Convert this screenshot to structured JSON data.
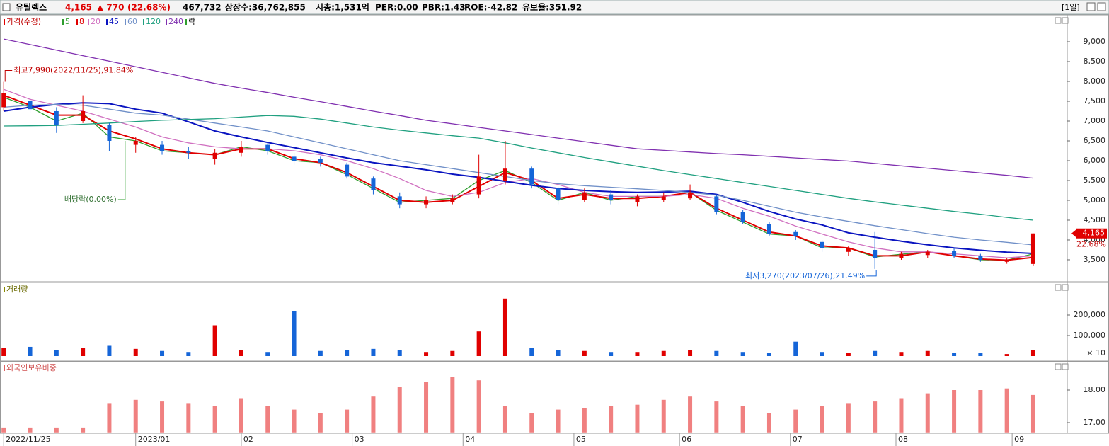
{
  "header": {
    "name": "유틸렉스",
    "price": "4,165",
    "change": "▲ 770",
    "change_pct": "(22.68%)",
    "volume": "467,732",
    "shares": "상장수:36,762,855",
    "market_cap": "시총:1,531억",
    "per": "PER:0.00",
    "pbr": "PBR:1.43",
    "roe": "ROE:-42.82",
    "reserve": "유보율:351.92",
    "period": "[1일]"
  },
  "chart_data": [
    {
      "type": "candlestick",
      "name": "가격(수정)",
      "up_color": "#e00000",
      "down_color": "#1565d8",
      "x": [
        0,
        5,
        10,
        15,
        20,
        25,
        30,
        35,
        40,
        45,
        50,
        55,
        60,
        65,
        70,
        75,
        80,
        85,
        90,
        95,
        100,
        105,
        110,
        115,
        120,
        125,
        130,
        135,
        140,
        145,
        150,
        155,
        160,
        165,
        170,
        175,
        180,
        185,
        190,
        195
      ],
      "open": [
        7350,
        7500,
        7250,
        7000,
        6900,
        6400,
        6400,
        6250,
        6050,
        6200,
        6400,
        6100,
        6050,
        5900,
        5550,
        5100,
        4900,
        4950,
        5150,
        5500,
        5800,
        5300,
        5000,
        5150,
        4950,
        5000,
        5050,
        5100,
        4700,
        4400,
        4200,
        3950,
        3700,
        3750,
        3550,
        3620,
        3720,
        3600,
        3450,
        3395
      ],
      "high": [
        7990,
        7600,
        7350,
        7650,
        6950,
        6600,
        6500,
        6350,
        6300,
        6500,
        6450,
        6200,
        6100,
        5950,
        5600,
        5200,
        5100,
        5150,
        6150,
        6500,
        5850,
        5350,
        5300,
        5250,
        5150,
        5200,
        5400,
        5150,
        4750,
        4450,
        4250,
        4000,
        3850,
        4200,
        3700,
        3750,
        3800,
        3650,
        3550,
        4165
      ],
      "low": [
        7250,
        7200,
        6700,
        6950,
        6250,
        6200,
        6150,
        6050,
        5900,
        6100,
        6150,
        5900,
        5850,
        5550,
        5150,
        4800,
        4800,
        4900,
        5050,
        5400,
        5300,
        4900,
        4950,
        4900,
        4850,
        4950,
        5000,
        4650,
        4400,
        4100,
        4000,
        3700,
        3600,
        3270,
        3500,
        3550,
        3550,
        3450,
        3400,
        3340
      ],
      "close": [
        7700,
        7300,
        6900,
        7250,
        6500,
        6500,
        6250,
        6200,
        6200,
        6350,
        6250,
        6000,
        5950,
        5600,
        5250,
        4900,
        5000,
        5050,
        5600,
        5800,
        5400,
        5000,
        5200,
        5000,
        5100,
        5100,
        5200,
        4700,
        4450,
        4150,
        4100,
        3800,
        3800,
        3550,
        3650,
        3700,
        3600,
        3500,
        3500,
        4165
      ],
      "series": [
        {
          "name": "5",
          "color": "#2e9e2e",
          "values": [
            7600,
            7350,
            7000,
            7200,
            6600,
            6500,
            6250,
            6200,
            6150,
            6350,
            6250,
            6000,
            5950,
            5650,
            5300,
            4950,
            5000,
            5050,
            5500,
            5750,
            5450,
            5000,
            5200,
            5000,
            5100,
            5100,
            5200,
            4750,
            4450,
            4150,
            4100,
            3800,
            3800,
            3570,
            3640,
            3700,
            3600,
            3500,
            3490,
            3650
          ]
        },
        {
          "name": "8",
          "color": "#e00000",
          "values": [
            7650,
            7400,
            7150,
            7150,
            6750,
            6550,
            6300,
            6200,
            6150,
            6300,
            6300,
            6050,
            5950,
            5700,
            5350,
            5000,
            4950,
            5000,
            5350,
            5700,
            5500,
            5050,
            5150,
            5050,
            5050,
            5100,
            5200,
            4800,
            4500,
            4200,
            4100,
            3850,
            3800,
            3600,
            3600,
            3700,
            3600,
            3520,
            3490,
            3560
          ]
        },
        {
          "name": "20",
          "color": "#d070c0",
          "values": [
            7800,
            7550,
            7400,
            7250,
            7050,
            6850,
            6600,
            6450,
            6350,
            6300,
            6300,
            6250,
            6150,
            6000,
            5800,
            5550,
            5250,
            5100,
            5200,
            5450,
            5550,
            5400,
            5200,
            5100,
            5100,
            5100,
            5150,
            5050,
            4800,
            4600,
            4350,
            4150,
            3950,
            3800,
            3700,
            3700,
            3650,
            3600,
            3550,
            3600
          ]
        },
        {
          "name": "45",
          "color": "#0a14c0",
          "values": [
            7250,
            7350,
            7420,
            7460,
            7440,
            7300,
            7200,
            6980,
            6750,
            6600,
            6460,
            6330,
            6200,
            6070,
            5950,
            5860,
            5770,
            5660,
            5580,
            5480,
            5380,
            5300,
            5250,
            5220,
            5200,
            5210,
            5230,
            5150,
            4950,
            4720,
            4530,
            4380,
            4180,
            4070,
            3970,
            3880,
            3800,
            3740,
            3690,
            3660
          ]
        },
        {
          "name": "60",
          "color": "#7090c8",
          "values": [
            7350,
            7400,
            7420,
            7400,
            7300,
            7200,
            7150,
            7050,
            6950,
            6850,
            6750,
            6600,
            6450,
            6300,
            6150,
            6000,
            5900,
            5800,
            5700,
            5600,
            5500,
            5420,
            5370,
            5330,
            5290,
            5250,
            5200,
            5130,
            5000,
            4850,
            4700,
            4580,
            4470,
            4360,
            4260,
            4160,
            4070,
            4000,
            3940,
            3875
          ]
        },
        {
          "name": "120",
          "color": "#20a080",
          "values": [
            6875,
            6880,
            6890,
            6920,
            6950,
            6990,
            7020,
            7040,
            7060,
            7100,
            7140,
            7120,
            7050,
            6950,
            6850,
            6770,
            6700,
            6630,
            6570,
            6450,
            6320,
            6200,
            6080,
            5970,
            5860,
            5750,
            5650,
            5550,
            5450,
            5350,
            5250,
            5150,
            5050,
            4960,
            4880,
            4800,
            4720,
            4650,
            4570,
            4500
          ]
        },
        {
          "name": "240",
          "color": "#8030b0",
          "values": [
            9070,
            8930,
            8790,
            8650,
            8510,
            8370,
            8230,
            8090,
            7950,
            7830,
            7720,
            7600,
            7490,
            7370,
            7250,
            7140,
            7020,
            6930,
            6840,
            6750,
            6660,
            6570,
            6480,
            6390,
            6300,
            6260,
            6220,
            6180,
            6150,
            6110,
            6070,
            6030,
            5990,
            5930,
            5870,
            5810,
            5750,
            5690,
            5630,
            5560
          ]
        }
      ],
      "dividend_legend": "락",
      "xlim": [
        -0.7,
        200.5
      ],
      "ylim": [
        2980,
        9430
      ],
      "yticks": [
        {
          "value": 3500,
          "label": "3,500"
        },
        {
          "value": 4000,
          "label": "4,000"
        },
        {
          "value": 4500,
          "label": "4,500"
        },
        {
          "value": 5000,
          "label": "5,000"
        },
        {
          "value": 5500,
          "label": "5,500"
        },
        {
          "value": 6000,
          "label": "6,000"
        },
        {
          "value": 6500,
          "label": "6,500"
        },
        {
          "value": 7000,
          "label": "7,000"
        },
        {
          "value": 7500,
          "label": "7,500"
        },
        {
          "value": 8000,
          "label": "8,000"
        },
        {
          "value": 8500,
          "label": "8,500"
        },
        {
          "value": 9000,
          "label": "9,000"
        }
      ],
      "last_price_label": "4,165",
      "last_change_label": "22.68%",
      "annotations": [
        {
          "text": "최고7,990(2022/11/25),91.84%",
          "x": 0,
          "y": 7990
        },
        {
          "text": "최저3,270(2023/07/26),21.49%",
          "x": 165,
          "y": 3270
        },
        {
          "text": "배당락(0.00%)",
          "x": 23,
          "y": 6500
        }
      ]
    },
    {
      "type": "bar",
      "title": "거래량",
      "up_color": "#e00000",
      "down_color": "#1565d8",
      "x": [
        0,
        5,
        10,
        15,
        20,
        25,
        30,
        35,
        40,
        45,
        50,
        55,
        60,
        65,
        70,
        75,
        80,
        85,
        90,
        95,
        100,
        105,
        110,
        115,
        120,
        125,
        130,
        135,
        140,
        145,
        150,
        155,
        160,
        165,
        170,
        175,
        180,
        185,
        190,
        195
      ],
      "values": [
        40000,
        45000,
        30000,
        40000,
        50000,
        35000,
        25000,
        20000,
        150000,
        30000,
        20000,
        220000,
        25000,
        30000,
        35000,
        30000,
        20000,
        25000,
        120000,
        280000,
        40000,
        30000,
        25000,
        20000,
        20000,
        25000,
        30000,
        25000,
        20000,
        15000,
        70000,
        20000,
        15000,
        25000,
        20000,
        25000,
        15000,
        15000,
        10000,
        30000
      ],
      "xlim": [
        -0.7,
        200.5
      ],
      "ylim": [
        0,
        320000
      ],
      "yticks": [
        {
          "value": 100000,
          "label": "100,000"
        },
        {
          "value": 200000,
          "label": "200,000"
        }
      ],
      "unit_label": "× 10"
    },
    {
      "type": "bar",
      "title": "외국인보유비중",
      "color": "#f08080",
      "x": [
        0,
        5,
        10,
        15,
        20,
        25,
        30,
        35,
        40,
        45,
        50,
        55,
        60,
        65,
        70,
        75,
        80,
        85,
        90,
        95,
        100,
        105,
        110,
        115,
        120,
        125,
        130,
        135,
        140,
        145,
        150,
        155,
        160,
        165,
        170,
        175,
        180,
        185,
        190,
        195
      ],
      "values": [
        16.85,
        16.85,
        16.85,
        16.85,
        17.6,
        17.7,
        17.65,
        17.6,
        17.5,
        17.75,
        17.5,
        17.4,
        17.3,
        17.4,
        17.8,
        18.1,
        18.25,
        18.4,
        18.3,
        17.5,
        17.3,
        17.4,
        17.45,
        17.5,
        17.55,
        17.7,
        17.8,
        17.65,
        17.5,
        17.3,
        17.4,
        17.5,
        17.6,
        17.65,
        17.75,
        17.9,
        18.0,
        18.0,
        18.05,
        17.85
      ],
      "xlim": [
        -0.7,
        200.5
      ],
      "ylim": [
        16.7,
        18.7
      ],
      "yticks": [
        {
          "value": 17,
          "label": "17.00"
        },
        {
          "value": 18,
          "label": "18.00"
        }
      ],
      "xticks": [
        {
          "value": 0,
          "label": "2022/11/25"
        },
        {
          "value": 25,
          "label": "2023/01"
        },
        {
          "value": 45,
          "label": "02"
        },
        {
          "value": 66,
          "label": "03"
        },
        {
          "value": 87,
          "label": "04"
        },
        {
          "value": 108,
          "label": "05"
        },
        {
          "value": 128,
          "label": "06"
        },
        {
          "value": 149,
          "label": "07"
        },
        {
          "value": 169,
          "label": "08"
        },
        {
          "value": 191,
          "label": "09"
        }
      ]
    }
  ]
}
